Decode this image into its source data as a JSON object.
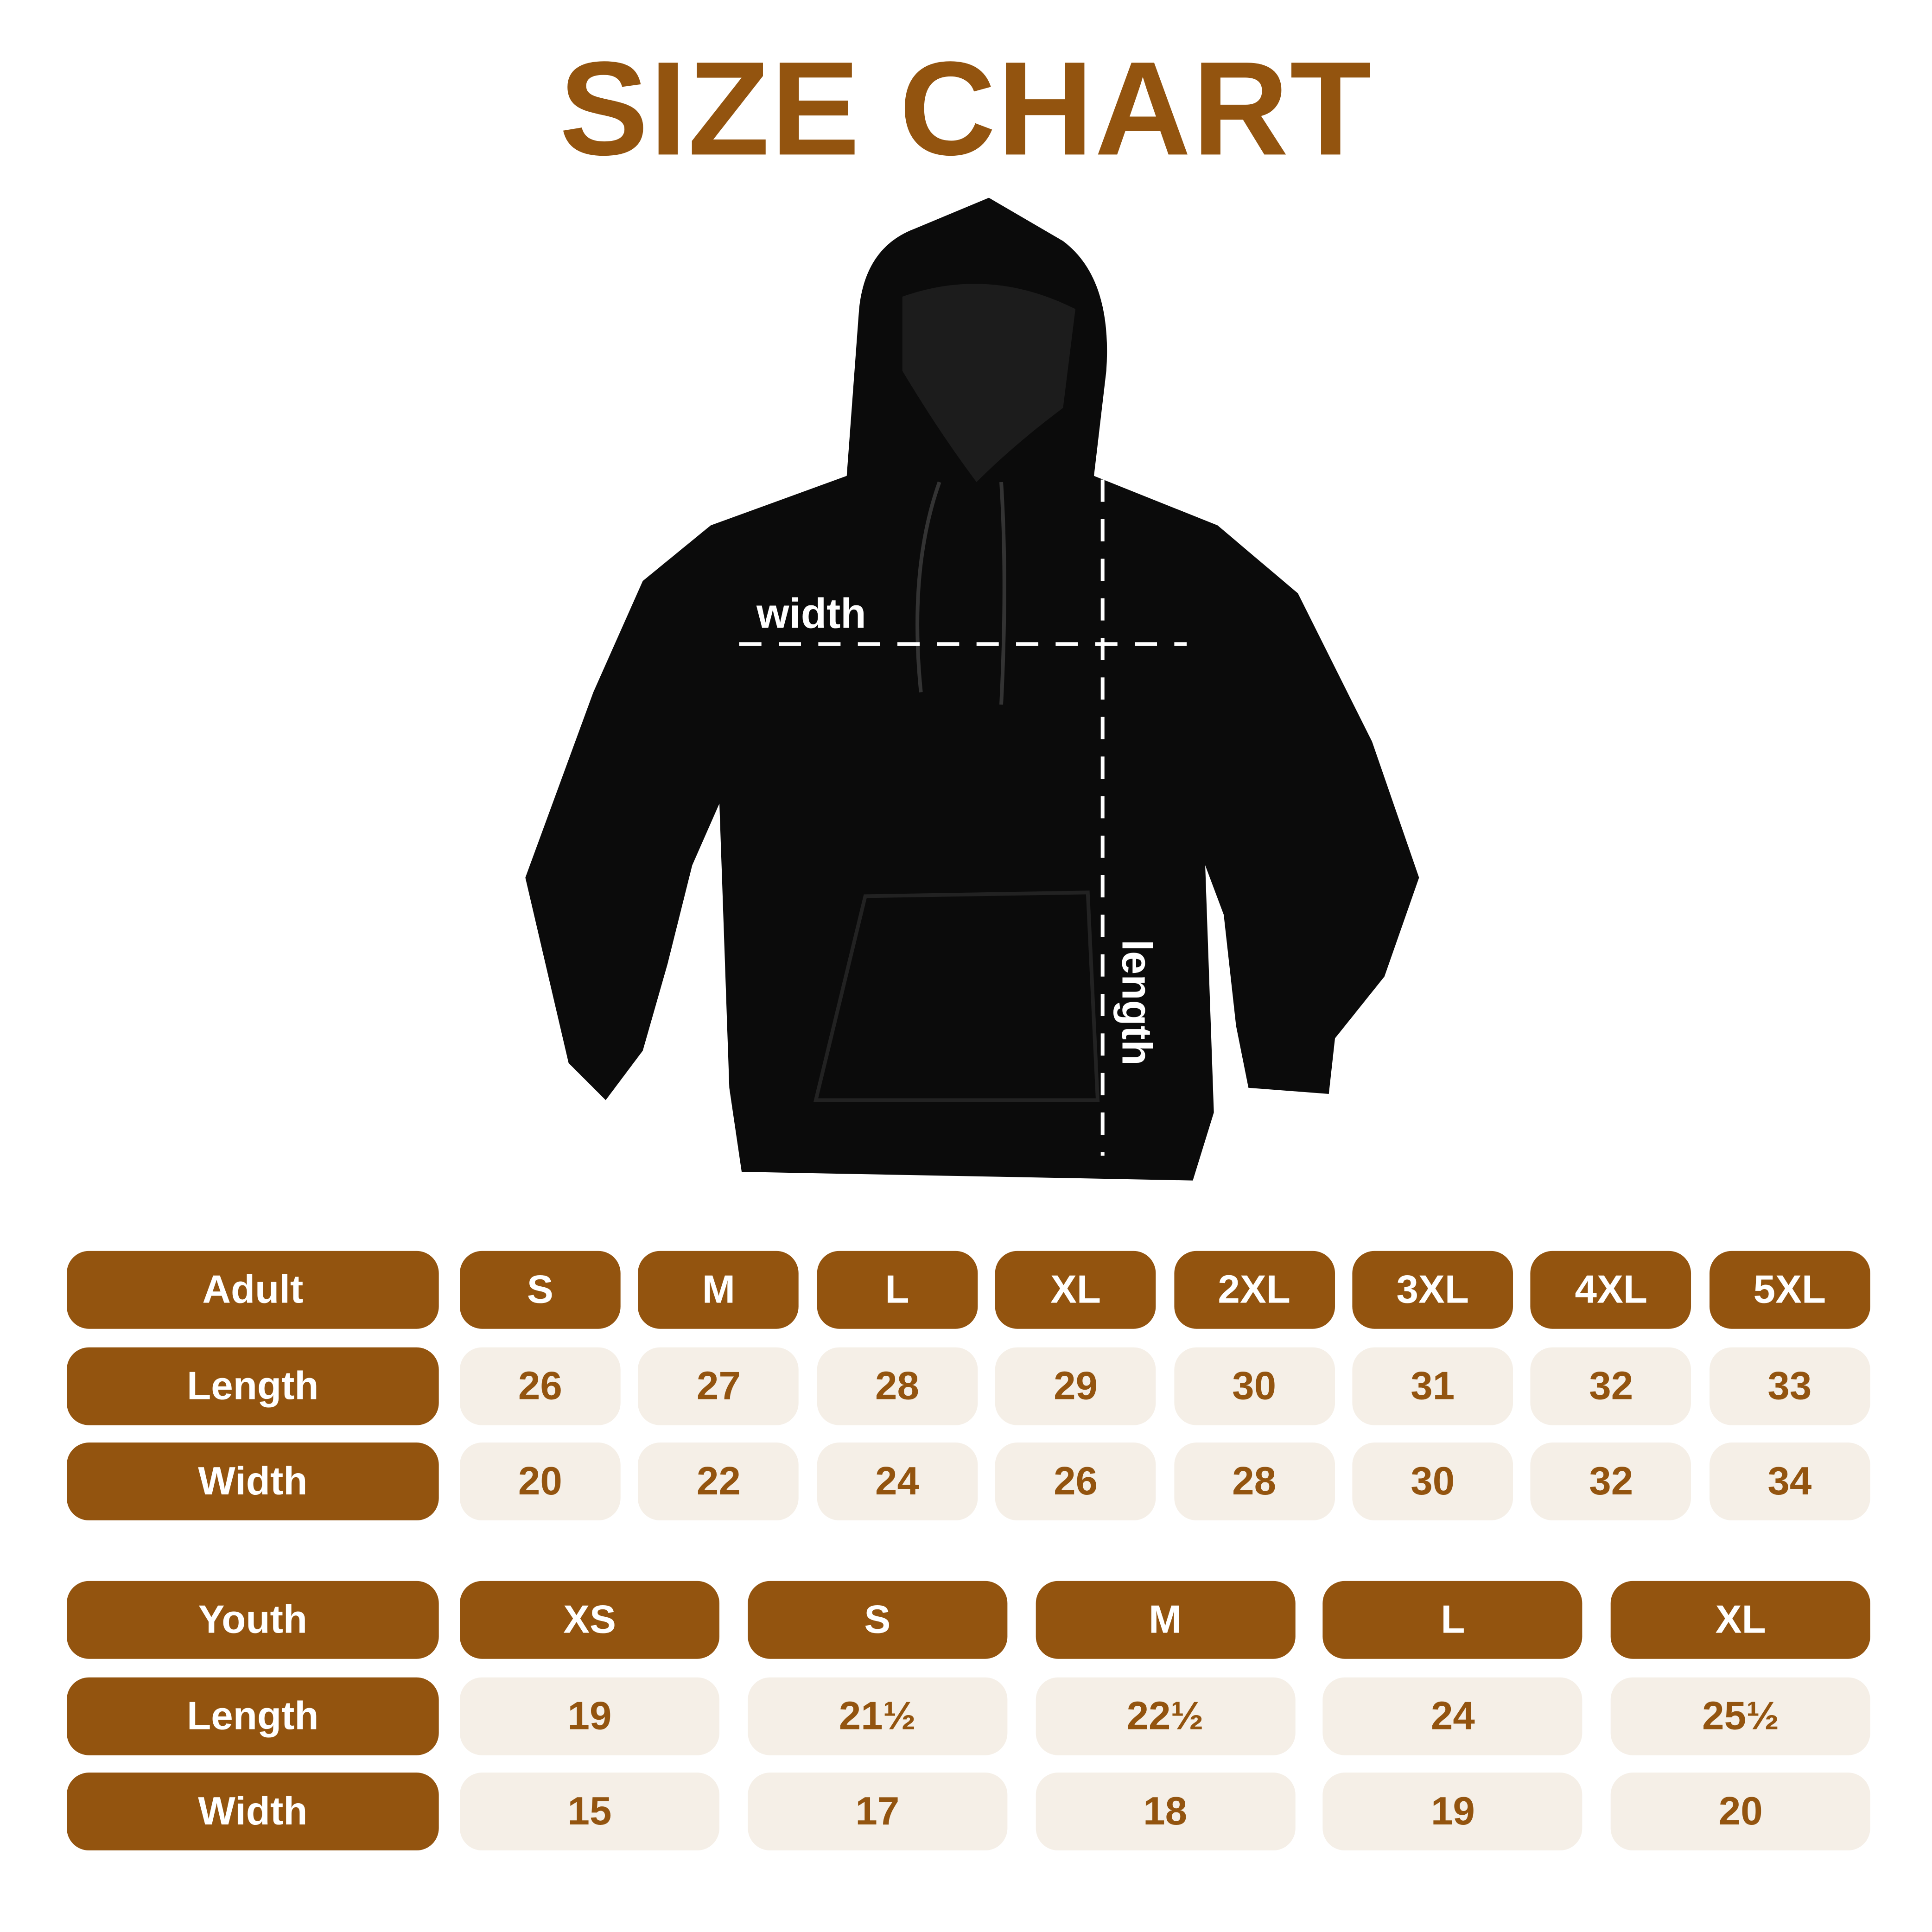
{
  "title": "SIZE CHART",
  "diagram": {
    "width_label": "width",
    "length_label": "length"
  },
  "colors": {
    "brand": "#93540f",
    "cell_bg": "#f5efe7",
    "garment": "#0b0b0b"
  },
  "adult": {
    "header": "Adult",
    "sizes": [
      "S",
      "M",
      "L",
      "XL",
      "2XL",
      "3XL",
      "4XL",
      "5XL"
    ],
    "rows": [
      {
        "label": "Length",
        "values": [
          "26",
          "27",
          "28",
          "29",
          "30",
          "31",
          "32",
          "33"
        ]
      },
      {
        "label": "Width",
        "values": [
          "20",
          "22",
          "24",
          "26",
          "28",
          "30",
          "32",
          "34"
        ]
      }
    ]
  },
  "youth": {
    "header": "Youth",
    "sizes": [
      "XS",
      "S",
      "M",
      "L",
      "XL"
    ],
    "rows": [
      {
        "label": "Length",
        "values": [
          "19",
          "21½",
          "22½",
          "24",
          "25½"
        ]
      },
      {
        "label": "Width",
        "values": [
          "15",
          "17",
          "18",
          "19",
          "20"
        ]
      }
    ]
  }
}
